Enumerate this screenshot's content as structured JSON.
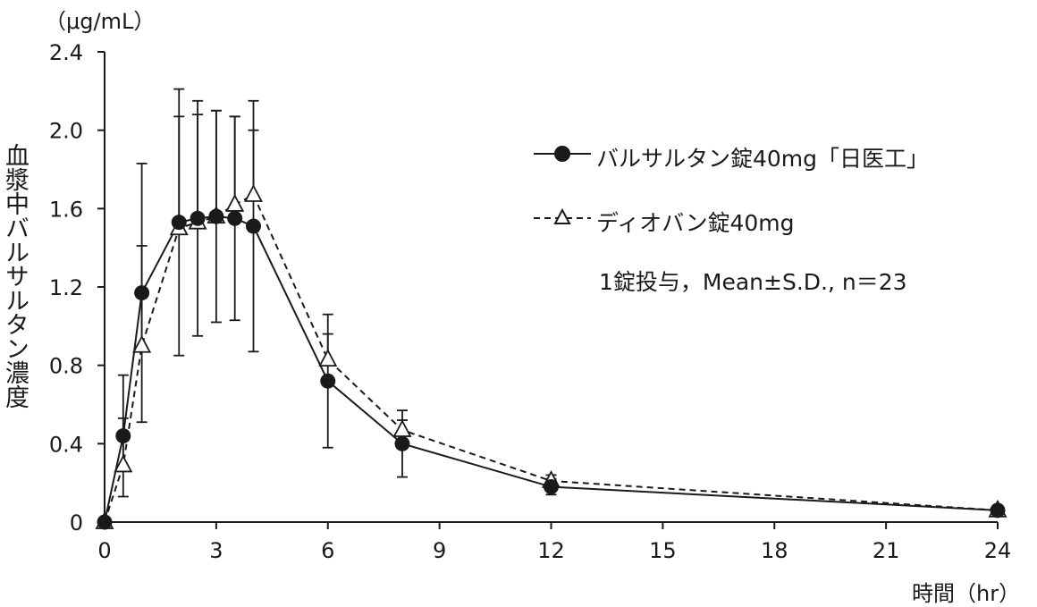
{
  "chart_data": {
    "type": "line",
    "y_unit": "（μg/mL）",
    "ylabel": "血漿中バルサルタン濃度",
    "xlabel": "時間（hr）",
    "x_ticks": [
      "0",
      "3",
      "6",
      "9",
      "12",
      "15",
      "18",
      "21",
      "24"
    ],
    "y_ticks": [
      "0",
      "0.4",
      "0.8",
      "1.2",
      "1.6",
      "2.0",
      "2.4"
    ],
    "xlim": [
      0,
      24
    ],
    "ylim": [
      0,
      2.4
    ],
    "grid": false,
    "legend_position": "top-right",
    "note": "1錠投与，Mean±S.D., n＝23",
    "series": [
      {
        "name": "バルサルタン錠40mg「日医工」",
        "marker": "filled-circle",
        "line": "solid",
        "color": "#1a1a1a",
        "x": [
          0,
          0.5,
          1,
          2,
          2.5,
          3,
          3.5,
          4,
          6,
          8,
          12,
          24
        ],
        "y": [
          0,
          0.44,
          1.17,
          1.53,
          1.55,
          1.56,
          1.55,
          1.51,
          0.72,
          0.4,
          0.18,
          0.06
        ],
        "sd": [
          0,
          0.31,
          0.66,
          0.68,
          0.6,
          0.54,
          0.52,
          0.64,
          0.34,
          0.17,
          0.04,
          0.01
        ]
      },
      {
        "name": "ディオバン錠40mg",
        "marker": "open-triangle",
        "line": "dashed",
        "color": "#1a1a1a",
        "x": [
          0,
          0.5,
          1,
          2,
          2.5,
          3,
          3.5,
          4,
          6,
          8,
          12,
          24
        ],
        "y": [
          0,
          0.29,
          0.9,
          1.5,
          1.53,
          1.56,
          1.62,
          1.67,
          0.83,
          0.47,
          0.21,
          0.06
        ],
        "sd": [
          0,
          0.24,
          0.51,
          0.57,
          0.55,
          0.54,
          0.45,
          0.33,
          0.13,
          0.05,
          0.03,
          0.01
        ]
      }
    ]
  }
}
